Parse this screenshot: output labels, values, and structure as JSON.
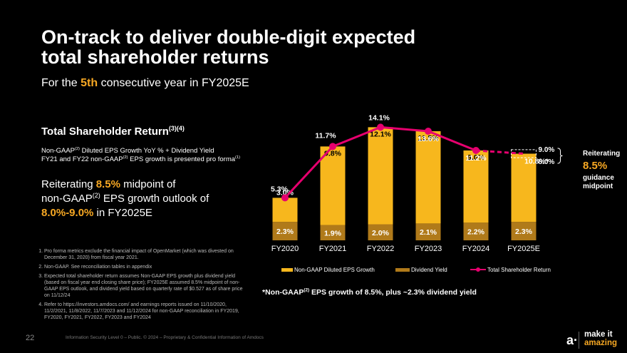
{
  "slide": {
    "title_line1": "On-track to deliver double-digit expected",
    "title_line2": "total shareholder returns",
    "subtitle_pre": "For the ",
    "subtitle_hl": "5th",
    "subtitle_post": " consecutive year in FY2025E",
    "tsr_title": "Total Shareholder Return",
    "tsr_sup": "(3)(4)",
    "note_a1": "Non-GAAP",
    "note_a_sup": "(2)",
    "note_a2": " Diluted EPS Growth YoY % + Dividend Yield",
    "note_b1": "FY21 and FY22 non-GAAP",
    "note_b_sup": "(2)",
    "note_b2": " EPS growth is presented pro forma",
    "note_b_sup2": "(1)",
    "reiter_1": "Reiterating ",
    "reiter_hl": "8.5%",
    "reiter_2": " midpoint of",
    "reiter_3": "non-GAAP",
    "reiter_sup": "(2)",
    "reiter_4": " EPS growth outlook of",
    "reiter_hl2": "8.0%-9.0%",
    "reiter_5": " in FY2025E",
    "footnotes": [
      "Pro forma metrics exclude the financial impact of OpenMarket (which was divested on December 31, 2020) from fiscal year 2021.",
      "Non-GAAP. See reconciliation tables in appendix",
      "Expected total shareholder return assumes Non-GAAP EPS growth plus dividend yield (based on fiscal year end closing share price); FY2025E assumed 8.5% midpoint of non-GAAP EPS outlook, and dividend yield based on quarterly rate of $0.527 as of share price on 11/12/24",
      "Refer to https://investors.amdocs.com/ and earnings reports issued on 11/10/2020, 11/2/2021, 11/8/2022, 11/7/2023 and 11/12/2024 for non-GAAP reconciliation in FY2019, FY2020, FY2021, FY2022, FY2023 and FY2024"
    ],
    "bottom_note_1": "*Non-GAAP",
    "bottom_note_sup": "(2)",
    "bottom_note_2": " EPS growth of 8.5%, plus ~2.3% dividend yield",
    "right_1": "Reiterating",
    "right_big": "8.5%",
    "right_2": "guidance",
    "right_3": "midpoint",
    "page_number": "22",
    "classification": "Information Security Level 0 – Public. © 2024 – Proprietary & Confidential Information of Amdocs",
    "logo_mark": "a·",
    "logo_line1": "make it",
    "logo_line2": "amazing"
  },
  "colors": {
    "eps_bar": "#f7b71d",
    "dividend_bar": "#b07a1a",
    "tsr_line": "#e6006e",
    "accent": "#f7a823",
    "background": "#000000"
  },
  "chart_data": {
    "type": "bar",
    "stacked": true,
    "categories": [
      "FY2020",
      "FY2021",
      "FY2022",
      "FY2023",
      "FY2024",
      "FY2025E"
    ],
    "series": [
      {
        "name": "Dividend Yield",
        "values": [
          2.3,
          1.9,
          2.0,
          2.1,
          2.2,
          2.3
        ],
        "labels": [
          "2.3%",
          "1.9%",
          "2.0%",
          "2.1%",
          "2.2%",
          "2.3%"
        ]
      },
      {
        "name": "Non-GAAP Diluted EPS Growth",
        "values": [
          3.0,
          9.8,
          12.1,
          11.5,
          9.0,
          8.5
        ],
        "labels": [
          "3.0%",
          "9.8%",
          "12.1%",
          "11.5%",
          "9.0%",
          ""
        ]
      },
      {
        "name": "Total Shareholder Return",
        "type": "line",
        "values": [
          5.3,
          11.7,
          14.1,
          13.6,
          11.2,
          10.8
        ],
        "labels": [
          "5.3%",
          "11.7%",
          "14.1%",
          "13.6%",
          "11.2%",
          "10.8%*"
        ]
      }
    ],
    "range_labels": {
      "high": "9.0%",
      "low": "8.0%"
    },
    "range_values": {
      "high": 9.0,
      "low": 8.0
    },
    "legend": [
      "Non-GAAP Diluted EPS Growth",
      "Dividend Yield",
      "Total Shareholder Return"
    ],
    "ylim": [
      0,
      16
    ]
  }
}
